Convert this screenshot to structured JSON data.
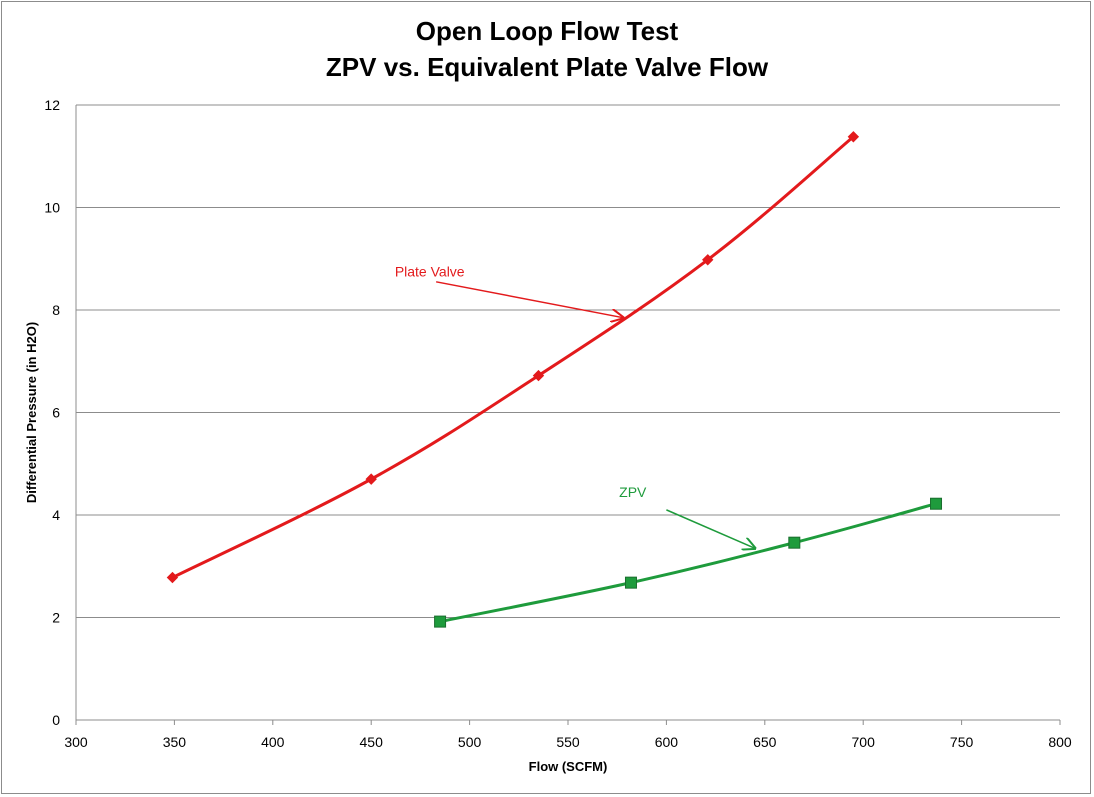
{
  "chart_data": {
    "type": "scatter",
    "title": "Open Loop Flow Test",
    "subtitle": "ZPV vs. Equivalent Plate Valve Flow",
    "xlabel": "Flow (SCFM)",
    "ylabel": "Differential Pressure (in H2O)",
    "xlim": [
      300,
      800
    ],
    "ylim": [
      0,
      12
    ],
    "xticks": [
      300,
      350,
      400,
      450,
      500,
      550,
      600,
      650,
      700,
      750,
      800
    ],
    "yticks": [
      0,
      2,
      4,
      6,
      8,
      10,
      12
    ],
    "grid": "horizontal",
    "legend": "none",
    "series": [
      {
        "name": "Plate Valve",
        "color": "#e31a1c",
        "marker": "diamond",
        "points": [
          [
            349,
            2.78
          ],
          [
            450,
            4.7
          ],
          [
            535,
            6.72
          ],
          [
            621,
            8.98
          ],
          [
            695,
            11.38
          ]
        ]
      },
      {
        "name": "ZPV",
        "color": "#1e9b3c",
        "marker": "square",
        "points": [
          [
            485,
            1.92
          ],
          [
            582,
            2.68
          ],
          [
            665,
            3.46
          ],
          [
            737,
            4.22
          ]
        ]
      }
    ],
    "annotations": [
      {
        "text": "Plate Valve",
        "series": "Plate Valve",
        "label_at": [
          462,
          8.65
        ],
        "arrow_from": [
          483,
          8.55
        ],
        "arrow_to": [
          578,
          7.85
        ]
      },
      {
        "text": "ZPV",
        "series": "ZPV",
        "label_at": [
          576,
          4.35
        ],
        "arrow_from": [
          600,
          4.1
        ],
        "arrow_to": [
          645,
          3.35
        ]
      }
    ]
  }
}
